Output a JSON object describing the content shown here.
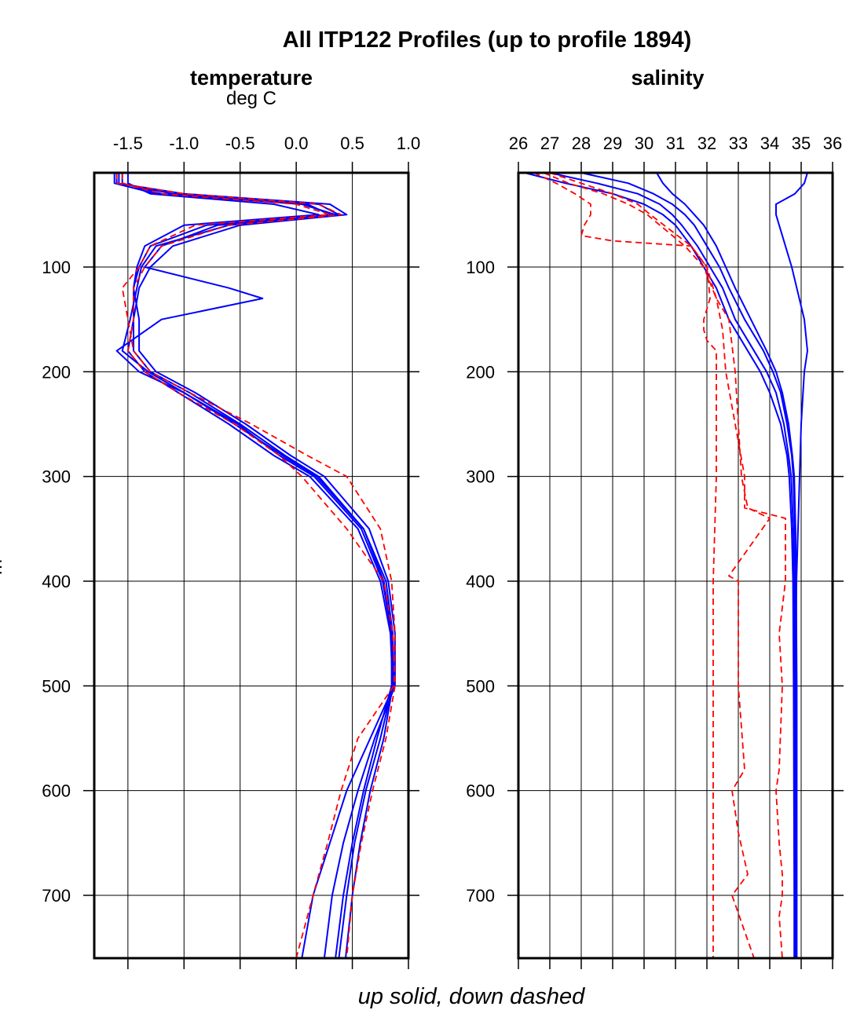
{
  "figure": {
    "title": "All ITP122 Profiles (up to profile 1894)",
    "ylabel": "m",
    "footer": "up solid, down dashed",
    "colors": {
      "up": "#0000ff",
      "down": "#ff0000",
      "grid": "#000000"
    }
  },
  "chart_data": [
    {
      "type": "line",
      "title": "temperature",
      "subtitle": "deg C",
      "xlim": [
        -1.8,
        1.0
      ],
      "ylim": [
        760,
        10
      ],
      "xticks": [
        -1.5,
        -1.0,
        -0.5,
        0.0,
        0.5,
        1.0
      ],
      "xtick_labels": [
        "-1.5",
        "-1.0",
        "-0.5",
        "0.0",
        "0.5",
        "1.0"
      ],
      "yticks": [
        100,
        200,
        300,
        400,
        500,
        600,
        700
      ],
      "ytick_labels": [
        "100",
        "200",
        "300",
        "400",
        "500",
        "600",
        "700"
      ],
      "grid": true,
      "series": [
        {
          "style": "up",
          "depth": [
            10,
            20,
            30,
            40,
            50,
            60,
            80,
            100,
            120,
            150,
            180,
            200,
            220,
            250,
            280,
            300,
            350,
            400,
            450,
            500,
            550,
            600,
            650,
            700,
            760
          ],
          "values": [
            -1.55,
            -1.55,
            -1.2,
            0.1,
            0.3,
            -0.8,
            -1.3,
            -1.4,
            -1.45,
            -1.45,
            -1.45,
            -1.3,
            -0.95,
            -0.5,
            -0.1,
            0.2,
            0.6,
            0.78,
            0.85,
            0.85,
            0.72,
            0.6,
            0.5,
            0.42,
            0.35
          ]
        },
        {
          "style": "up",
          "depth": [
            10,
            20,
            30,
            40,
            50,
            60,
            80,
            100,
            120,
            150,
            180,
            200,
            220,
            250,
            280,
            300,
            350,
            400,
            450,
            500,
            550,
            600,
            650,
            700,
            760
          ],
          "values": [
            -1.6,
            -1.6,
            -1.0,
            0.3,
            0.45,
            -0.5,
            -1.1,
            -1.3,
            -1.4,
            -1.45,
            -1.5,
            -1.35,
            -1.05,
            -0.6,
            -0.2,
            0.12,
            0.55,
            0.75,
            0.84,
            0.86,
            0.75,
            0.62,
            0.52,
            0.45,
            0.38
          ]
        },
        {
          "style": "up",
          "depth": [
            10,
            20,
            30,
            40,
            50,
            60,
            80,
            100,
            120,
            150,
            180,
            200,
            220,
            250,
            280,
            300,
            350,
            400,
            450,
            500,
            550,
            600,
            650,
            700,
            760
          ],
          "values": [
            -1.5,
            -1.5,
            -1.3,
            -0.2,
            0.2,
            -1.0,
            -1.35,
            -1.42,
            -1.45,
            -1.4,
            -1.4,
            -1.25,
            -0.9,
            -0.45,
            -0.05,
            0.25,
            0.65,
            0.82,
            0.88,
            0.88,
            0.7,
            0.55,
            0.42,
            0.32,
            0.25
          ]
        },
        {
          "style": "up",
          "depth": [
            10,
            20,
            30,
            40,
            50,
            60,
            80,
            100,
            120,
            130,
            150,
            180,
            200,
            220,
            250,
            280,
            300,
            350,
            400,
            450,
            500,
            550,
            600,
            650,
            700,
            760
          ],
          "values": [
            -1.58,
            -1.58,
            -1.1,
            0.2,
            0.38,
            -0.7,
            -1.2,
            -1.35,
            -0.6,
            -0.3,
            -1.2,
            -1.6,
            -1.4,
            -1.0,
            -0.55,
            -0.12,
            0.18,
            0.6,
            0.8,
            0.86,
            0.87,
            0.66,
            0.45,
            0.3,
            0.15,
            0.05
          ]
        },
        {
          "style": "up",
          "depth": [
            10,
            20,
            30,
            40,
            50,
            60,
            80,
            100,
            120,
            150,
            180,
            200,
            220,
            250,
            280,
            300,
            350,
            400,
            450,
            500,
            550,
            600,
            650,
            700,
            760
          ],
          "values": [
            -1.62,
            -1.62,
            -1.25,
            0.05,
            0.35,
            -0.6,
            -1.25,
            -1.38,
            -1.42,
            -1.48,
            -1.55,
            -1.32,
            -1.0,
            -0.52,
            -0.15,
            0.16,
            0.58,
            0.77,
            0.85,
            0.86,
            0.78,
            0.66,
            0.57,
            0.5,
            0.44
          ]
        },
        {
          "style": "down",
          "depth": [
            10,
            20,
            30,
            40,
            50,
            60,
            80,
            100,
            120,
            150,
            180,
            200,
            220,
            250,
            280,
            300,
            350,
            400,
            450,
            500,
            550,
            600,
            650,
            700,
            760
          ],
          "values": [
            -1.55,
            -1.55,
            -1.2,
            0.0,
            0.3,
            -0.9,
            -1.3,
            -1.4,
            -1.55,
            -1.5,
            -1.45,
            -1.3,
            -0.95,
            -0.4,
            0.1,
            0.45,
            0.75,
            0.85,
            0.88,
            0.87,
            0.55,
            0.4,
            0.28,
            0.15,
            0.0
          ]
        },
        {
          "style": "down",
          "depth": [
            10,
            20,
            30,
            40,
            50,
            60,
            80,
            100,
            120,
            150,
            180,
            200,
            220,
            250,
            280,
            300,
            350,
            400,
            450,
            500,
            550,
            600,
            650,
            700,
            760
          ],
          "values": [
            -1.6,
            -1.6,
            -1.0,
            0.2,
            0.4,
            -0.6,
            -1.2,
            -1.35,
            -1.45,
            -1.45,
            -1.5,
            -1.35,
            -1.05,
            -0.55,
            -0.15,
            0.05,
            0.45,
            0.78,
            0.86,
            0.88,
            0.8,
            0.68,
            0.58,
            0.5,
            0.45
          ]
        }
      ]
    },
    {
      "type": "line",
      "title": "salinity",
      "subtitle": "",
      "xlim": [
        26,
        36
      ],
      "ylim": [
        760,
        10
      ],
      "xticks": [
        26,
        27,
        28,
        29,
        30,
        31,
        32,
        33,
        34,
        35,
        36
      ],
      "xtick_labels": [
        "26",
        "27",
        "28",
        "29",
        "30",
        "31",
        "32",
        "33",
        "34",
        "35",
        "36"
      ],
      "yticks": [
        100,
        200,
        300,
        400,
        500,
        600,
        700
      ],
      "ytick_labels": [
        "100",
        "200",
        "300",
        "400",
        "500",
        "600",
        "700"
      ],
      "grid": true,
      "series": [
        {
          "style": "up",
          "depth": [
            10,
            20,
            30,
            40,
            50,
            60,
            80,
            100,
            120,
            150,
            180,
            200,
            220,
            250,
            280,
            300,
            350,
            400,
            500,
            600,
            700,
            760
          ],
          "values": [
            27.0,
            28.5,
            29.8,
            30.5,
            30.9,
            31.2,
            31.7,
            32.1,
            32.5,
            32.9,
            33.5,
            33.9,
            34.2,
            34.45,
            34.6,
            34.68,
            34.75,
            34.78,
            34.8,
            34.8,
            34.8,
            34.8
          ]
        },
        {
          "style": "up",
          "depth": [
            10,
            20,
            30,
            40,
            50,
            60,
            80,
            100,
            120,
            150,
            180,
            200,
            220,
            250,
            280,
            300,
            350,
            400,
            500,
            600,
            700,
            760
          ],
          "values": [
            26.2,
            27.5,
            29.0,
            30.0,
            30.6,
            31.0,
            31.5,
            31.9,
            32.3,
            32.7,
            33.3,
            33.7,
            34.0,
            34.35,
            34.55,
            34.62,
            34.7,
            34.74,
            34.76,
            34.77,
            34.78,
            34.78
          ]
        },
        {
          "style": "up",
          "depth": [
            10,
            20,
            30,
            40,
            50,
            60,
            80,
            100,
            120,
            150,
            180,
            200,
            220,
            250,
            280,
            300,
            350,
            400,
            500,
            600,
            700,
            760
          ],
          "values": [
            28.0,
            29.5,
            30.3,
            30.9,
            31.3,
            31.6,
            32.0,
            32.4,
            32.7,
            33.2,
            33.8,
            34.1,
            34.35,
            34.55,
            34.7,
            34.75,
            34.8,
            34.82,
            34.84,
            34.85,
            34.85,
            34.85
          ]
        },
        {
          "style": "up",
          "depth": [
            10,
            20,
            30,
            40,
            50,
            60,
            80,
            100,
            120,
            150,
            180,
            200,
            220,
            250,
            280,
            300,
            350,
            400,
            500,
            600,
            700,
            760
          ],
          "values": [
            30.4,
            30.6,
            30.9,
            31.3,
            31.6,
            31.9,
            32.3,
            32.6,
            32.9,
            33.4,
            33.9,
            34.2,
            34.4,
            34.6,
            34.72,
            34.78,
            34.82,
            34.84,
            34.86,
            34.86,
            34.86,
            34.86
          ]
        },
        {
          "style": "up",
          "depth": [
            10,
            20,
            30,
            40,
            50,
            60,
            80,
            100,
            150,
            180,
            200,
            250,
            300,
            350,
            400,
            500,
            600,
            700,
            760
          ],
          "values": [
            35.2,
            35.1,
            34.8,
            34.2,
            34.2,
            34.3,
            34.5,
            34.7,
            35.1,
            35.2,
            35.1,
            35.0,
            34.95,
            34.9,
            34.85,
            34.82,
            34.8,
            34.8,
            34.8
          ]
        },
        {
          "style": "down",
          "depth": [
            10,
            20,
            30,
            40,
            50,
            60,
            70,
            75,
            80,
            100,
            130,
            150,
            160,
            170,
            180,
            200,
            300,
            400,
            500,
            600,
            700,
            760
          ],
          "values": [
            26.5,
            27.2,
            27.8,
            28.3,
            28.3,
            28.1,
            28.0,
            29.0,
            31.5,
            32.0,
            32.1,
            31.9,
            31.9,
            32.0,
            32.3,
            32.3,
            32.3,
            32.2,
            32.2,
            32.2,
            32.2,
            32.2
          ]
        },
        {
          "style": "down",
          "depth": [
            10,
            20,
            30,
            40,
            50,
            80,
            100,
            130,
            160,
            200,
            250,
            300,
            330,
            340,
            400,
            450,
            500,
            580,
            600,
            650,
            680,
            700,
            720,
            760
          ],
          "values": [
            27.0,
            28.0,
            29.0,
            29.8,
            30.2,
            31.5,
            32.0,
            32.3,
            32.5,
            32.6,
            32.9,
            33.2,
            33.2,
            34.5,
            34.5,
            34.3,
            34.4,
            34.3,
            34.2,
            34.3,
            34.4,
            34.4,
            34.3,
            34.4
          ]
        },
        {
          "style": "down",
          "depth": [
            10,
            20,
            30,
            40,
            50,
            80,
            100,
            130,
            150,
            200,
            250,
            300,
            330,
            340,
            395,
            400,
            500,
            580,
            600,
            640,
            680,
            700,
            760
          ],
          "values": [
            26.8,
            27.6,
            28.7,
            29.5,
            30.1,
            31.3,
            31.9,
            32.3,
            32.7,
            32.9,
            33.0,
            33.1,
            33.3,
            34.0,
            32.7,
            33.0,
            33.0,
            33.2,
            32.8,
            33.0,
            33.3,
            32.8,
            33.5
          ]
        }
      ]
    }
  ]
}
